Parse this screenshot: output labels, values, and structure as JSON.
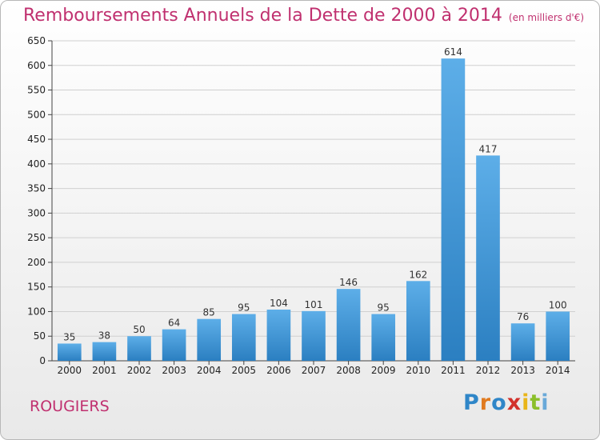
{
  "chart_data": {
    "type": "bar",
    "title": "Remboursements Annuels de la Dette de 2000 à 2014",
    "unit": "(en milliers d'€)",
    "categories": [
      "2000",
      "2001",
      "2002",
      "2003",
      "2004",
      "2005",
      "2006",
      "2007",
      "2008",
      "2009",
      "2010",
      "2011",
      "2012",
      "2013",
      "2014"
    ],
    "values": [
      35,
      38,
      50,
      64,
      85,
      95,
      104,
      101,
      146,
      95,
      162,
      614,
      417,
      76,
      100
    ],
    "yticks": [
      0,
      50,
      100,
      150,
      200,
      250,
      300,
      350,
      400,
      450,
      500,
      550,
      600,
      650
    ],
    "ylim": [
      0,
      650
    ],
    "grid": true,
    "xlabel": "",
    "ylabel": ""
  },
  "commune": "ROUGIERS",
  "logo": {
    "letters": [
      "P",
      "r",
      "o",
      "x",
      "i",
      "t",
      "i"
    ],
    "colors": [
      "#2f86c8",
      "#e07a1f",
      "#2f86c8",
      "#d2312b",
      "#e9b51a",
      "#8bbf2a",
      "#6aa9d9"
    ]
  },
  "colors": {
    "bar_top": "#5daee8",
    "bar_bottom": "#2b7fc1",
    "title": "#c0306f",
    "grid": "#d0d0d0"
  }
}
